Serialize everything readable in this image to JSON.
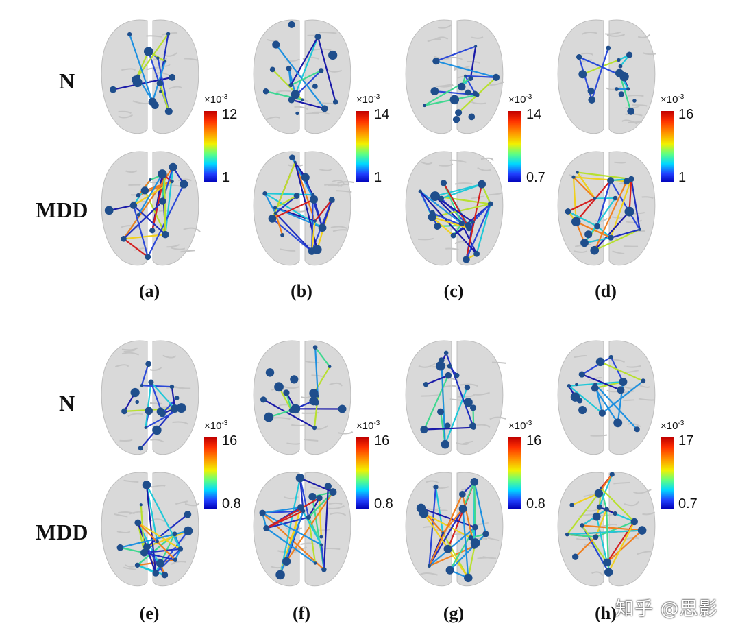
{
  "row_labels": {
    "n": "N",
    "mdd": "MDD"
  },
  "panels": [
    {
      "sub": "(a)",
      "cb_exp": "×10",
      "cb_pow": "-3",
      "cb_max": "12",
      "cb_min": "1"
    },
    {
      "sub": "(b)",
      "cb_exp": "×10",
      "cb_pow": "-3",
      "cb_max": "14",
      "cb_min": "1"
    },
    {
      "sub": "(c)",
      "cb_exp": "×10",
      "cb_pow": "-3",
      "cb_max": "14",
      "cb_min": "0.7"
    },
    {
      "sub": "(d)",
      "cb_exp": "×10",
      "cb_pow": "-3",
      "cb_max": "16",
      "cb_min": "1"
    },
    {
      "sub": "(e)",
      "cb_exp": "×10",
      "cb_pow": "-3",
      "cb_max": "16",
      "cb_min": "0.8"
    },
    {
      "sub": "(f)",
      "cb_exp": "×10",
      "cb_pow": "-3",
      "cb_max": "16",
      "cb_min": "0.8"
    },
    {
      "sub": "(g)",
      "cb_exp": "×10",
      "cb_pow": "-3",
      "cb_max": "16",
      "cb_min": "0.8"
    },
    {
      "sub": "(h)",
      "cb_exp": "×10",
      "cb_pow": "-3",
      "cb_max": "17",
      "cb_min": "0.7"
    }
  ],
  "watermark": "知乎 @思影",
  "colors": {
    "node": "#1f4e8c",
    "brain": "#d9d9d9",
    "edge_low": "#1a1aa8",
    "edge_high": "#d42020"
  }
}
